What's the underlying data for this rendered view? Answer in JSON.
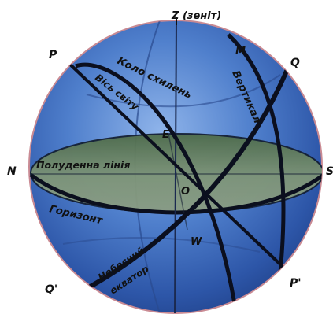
{
  "diagram": {
    "points": {
      "zenith": "Z (зеніт)",
      "p": "P",
      "m": "M",
      "q": "Q",
      "n": "N",
      "s": "S",
      "e": "E",
      "o": "O",
      "w": "W",
      "q_prime": "Q'",
      "p_prime": "P'"
    },
    "lines": {
      "declination_circle": "Коло схилень",
      "world_axis": "Вісь світу",
      "vertical": "Вертикал",
      "meridian_line": "Полуденна лінія",
      "horizon": "Горизонт",
      "celestial_equator_1": "Небесний",
      "celestial_equator_2": "екватор"
    },
    "colors": {
      "sphere": "#3f6fc0",
      "horizon_plane": "#5e7a58",
      "great_circles": "#0b0f1e"
    }
  }
}
